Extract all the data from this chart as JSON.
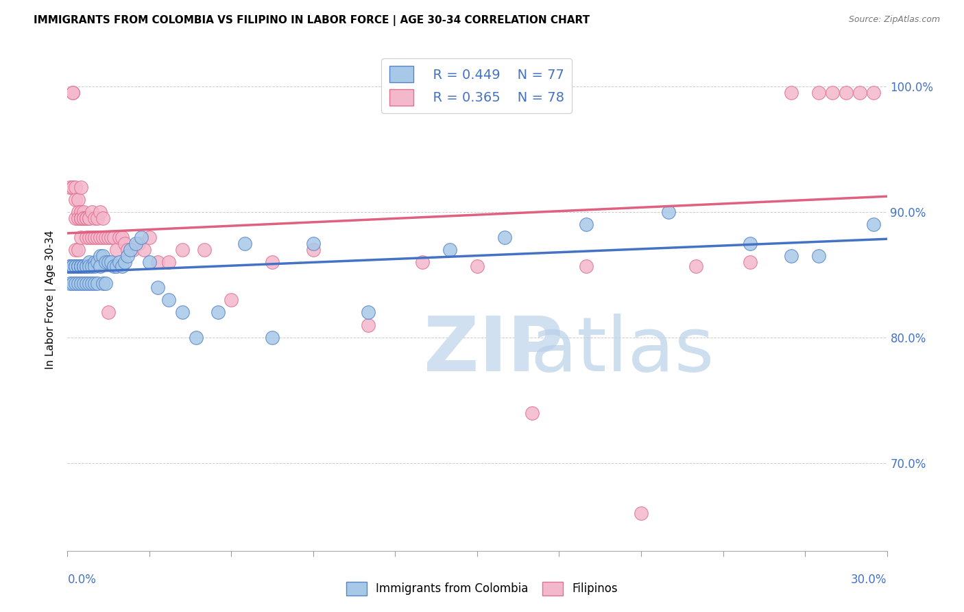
{
  "title": "IMMIGRANTS FROM COLOMBIA VS FILIPINO IN LABOR FORCE | AGE 30-34 CORRELATION CHART",
  "source": "Source: ZipAtlas.com",
  "ylabel": "In Labor Force | Age 30-34",
  "ytick_values": [
    0.7,
    0.8,
    0.9,
    1.0
  ],
  "ytick_labels": [
    "70.0%",
    "80.0%",
    "90.0%",
    "100.0%"
  ],
  "xmin": 0.0,
  "xmax": 0.3,
  "ymin": 0.63,
  "ymax": 1.03,
  "colombia_R": 0.449,
  "colombia_N": 77,
  "filipinos_R": 0.365,
  "filipinos_N": 78,
  "colombia_color": "#A8C8E8",
  "filipinos_color": "#F4B8CC",
  "colombia_edge_color": "#5585C8",
  "filipinos_edge_color": "#E07090",
  "colombia_line_color": "#4472C4",
  "filipinos_line_color": "#E06080",
  "legend_box_color_col": "#A8C8E8",
  "legend_box_color_fil": "#F4B8CC",
  "axis_label_color": "#4472C4",
  "watermark_color": "#D0E0F0",
  "watermark_color2": "#B8D0E8",
  "colombia_x": [
    0.001,
    0.001,
    0.001,
    0.002,
    0.002,
    0.002,
    0.002,
    0.003,
    0.003,
    0.003,
    0.003,
    0.003,
    0.004,
    0.004,
    0.004,
    0.004,
    0.004,
    0.005,
    0.005,
    0.005,
    0.005,
    0.005,
    0.005,
    0.005,
    0.006,
    0.006,
    0.006,
    0.006,
    0.006,
    0.007,
    0.007,
    0.007,
    0.008,
    0.008,
    0.008,
    0.009,
    0.009,
    0.01,
    0.01,
    0.01,
    0.011,
    0.011,
    0.012,
    0.012,
    0.013,
    0.013,
    0.014,
    0.014,
    0.015,
    0.016,
    0.017,
    0.018,
    0.019,
    0.02,
    0.021,
    0.022,
    0.023,
    0.025,
    0.027,
    0.03,
    0.033,
    0.037,
    0.042,
    0.047,
    0.055,
    0.065,
    0.075,
    0.09,
    0.11,
    0.14,
    0.16,
    0.19,
    0.22,
    0.25,
    0.265,
    0.275,
    0.295
  ],
  "colombia_y": [
    0.857,
    0.857,
    0.843,
    0.857,
    0.857,
    0.857,
    0.843,
    0.857,
    0.857,
    0.857,
    0.843,
    0.857,
    0.857,
    0.857,
    0.843,
    0.857,
    0.857,
    0.857,
    0.857,
    0.857,
    0.843,
    0.857,
    0.857,
    0.857,
    0.857,
    0.857,
    0.843,
    0.857,
    0.857,
    0.857,
    0.857,
    0.843,
    0.86,
    0.857,
    0.843,
    0.857,
    0.843,
    0.86,
    0.857,
    0.843,
    0.86,
    0.843,
    0.865,
    0.857,
    0.865,
    0.843,
    0.86,
    0.843,
    0.86,
    0.86,
    0.857,
    0.857,
    0.86,
    0.857,
    0.86,
    0.865,
    0.87,
    0.875,
    0.88,
    0.86,
    0.84,
    0.83,
    0.82,
    0.8,
    0.82,
    0.875,
    0.8,
    0.875,
    0.82,
    0.87,
    0.88,
    0.89,
    0.9,
    0.875,
    0.865,
    0.865,
    0.89
  ],
  "filipinos_x": [
    0.001,
    0.001,
    0.001,
    0.002,
    0.002,
    0.002,
    0.002,
    0.003,
    0.003,
    0.003,
    0.003,
    0.003,
    0.004,
    0.004,
    0.004,
    0.004,
    0.005,
    0.005,
    0.005,
    0.005,
    0.005,
    0.005,
    0.005,
    0.006,
    0.006,
    0.006,
    0.007,
    0.007,
    0.007,
    0.007,
    0.008,
    0.008,
    0.008,
    0.009,
    0.009,
    0.01,
    0.01,
    0.011,
    0.011,
    0.012,
    0.012,
    0.013,
    0.013,
    0.014,
    0.015,
    0.015,
    0.016,
    0.017,
    0.018,
    0.019,
    0.02,
    0.021,
    0.022,
    0.024,
    0.026,
    0.028,
    0.03,
    0.033,
    0.037,
    0.042,
    0.05,
    0.06,
    0.075,
    0.09,
    0.11,
    0.13,
    0.15,
    0.17,
    0.19,
    0.21,
    0.23,
    0.25,
    0.265,
    0.275,
    0.28,
    0.285,
    0.29,
    0.295
  ],
  "filipinos_y": [
    0.857,
    0.92,
    0.857,
    0.995,
    0.995,
    0.92,
    0.92,
    0.92,
    0.91,
    0.895,
    0.87,
    0.857,
    0.91,
    0.9,
    0.895,
    0.87,
    0.92,
    0.9,
    0.895,
    0.895,
    0.895,
    0.895,
    0.88,
    0.9,
    0.895,
    0.895,
    0.895,
    0.895,
    0.895,
    0.88,
    0.895,
    0.895,
    0.88,
    0.9,
    0.88,
    0.895,
    0.88,
    0.895,
    0.88,
    0.9,
    0.88,
    0.88,
    0.895,
    0.88,
    0.88,
    0.82,
    0.88,
    0.88,
    0.87,
    0.88,
    0.88,
    0.875,
    0.87,
    0.87,
    0.875,
    0.87,
    0.88,
    0.86,
    0.86,
    0.87,
    0.87,
    0.83,
    0.86,
    0.87,
    0.81,
    0.86,
    0.857,
    0.74,
    0.857,
    0.66,
    0.857,
    0.86,
    0.995,
    0.995,
    0.995,
    0.995,
    0.995,
    0.995
  ]
}
